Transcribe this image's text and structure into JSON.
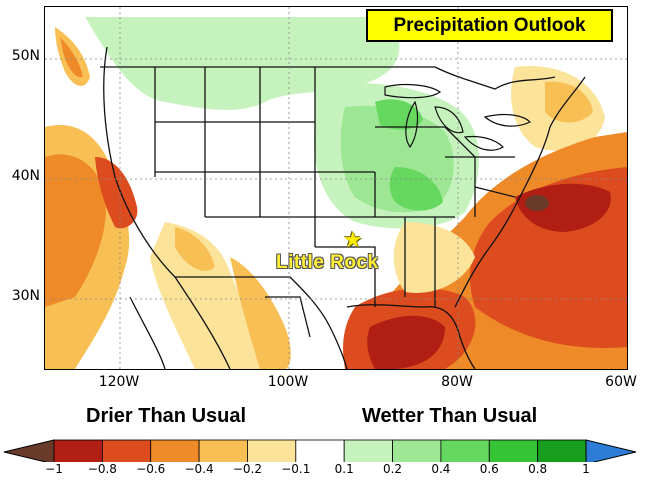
{
  "title": "Precipitation Outlook",
  "location": "Little Rock",
  "latitude_labels": [
    "50N",
    "40N",
    "30N"
  ],
  "longitude_labels": [
    "120W",
    "100W",
    "80W",
    "60W"
  ],
  "legend": {
    "drier_label": "Drier Than Usual",
    "wetter_label": "Wetter Than Usual",
    "ticks": [
      "−1",
      "−0.8",
      "−0.6",
      "−0.4",
      "−0.2",
      "−0.1",
      "0.1",
      "0.2",
      "0.4",
      "0.6",
      "0.8",
      "1"
    ],
    "colors": [
      "#b01e14",
      "#dc4c1e",
      "#ef8a28",
      "#f8c054",
      "#fce39a",
      "#ffffff",
      "#c6f3bd",
      "#9de694",
      "#66d860",
      "#35c435",
      "#179e1c"
    ],
    "low_extreme_color": "#6a3b2a",
    "high_extreme_color": "#2e7cd6"
  }
}
